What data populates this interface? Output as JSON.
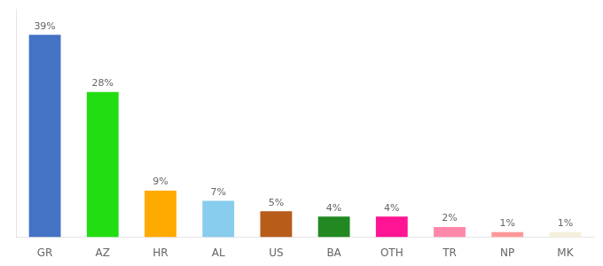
{
  "chart_data": {
    "type": "bar",
    "categories": [
      "GR",
      "AZ",
      "HR",
      "AL",
      "US",
      "BA",
      "OTH",
      "TR",
      "NP",
      "MK"
    ],
    "values": [
      39,
      28,
      9,
      7,
      5,
      4,
      4,
      2,
      1,
      1
    ],
    "value_labels": [
      "39%",
      "28%",
      "9%",
      "7%",
      "5%",
      "4%",
      "4%",
      "2%",
      "1%",
      "1%"
    ],
    "colors": [
      "#4472c4",
      "#22dd11",
      "#ffaa00",
      "#88ccee",
      "#b85c1a",
      "#228822",
      "#ff1493",
      "#ff88aa",
      "#ff9999",
      "#f5f0dc"
    ],
    "ylim": [
      0,
      44
    ],
    "grid": false,
    "data_labels": true,
    "tick_labels": "x"
  }
}
